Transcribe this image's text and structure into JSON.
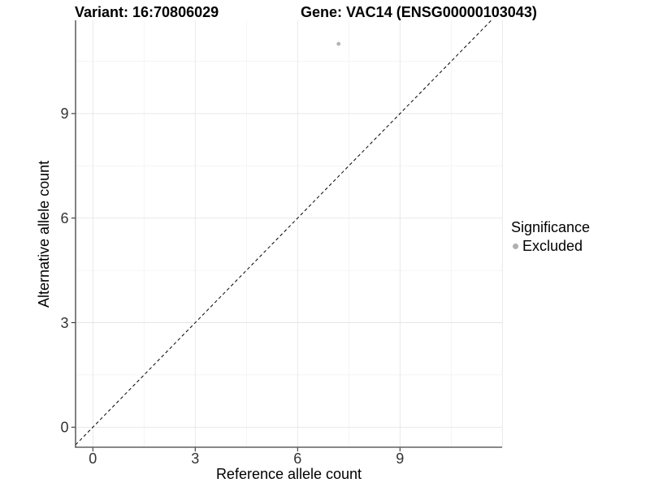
{
  "chart_data": {
    "type": "scatter",
    "title_left": "Variant: 16:70806029",
    "title_right": "Gene: VAC14 (ENSG00000103043)",
    "xlabel": "Reference allele count",
    "ylabel": "Alternative allele count",
    "x_ticks": [
      0,
      3,
      6,
      9
    ],
    "y_ticks": [
      0,
      3,
      6,
      9
    ],
    "x_grid_major": [
      0,
      3,
      6,
      9,
      12
    ],
    "x_grid_minor": [
      1.5,
      4.5,
      7.5,
      10.5
    ],
    "y_grid_major": [
      0,
      3,
      6,
      9
    ],
    "y_grid_minor": [
      1.5,
      4.5,
      7.5,
      10.5
    ],
    "xlim": [
      -0.51,
      12.0
    ],
    "ylim": [
      -0.58,
      11.68
    ],
    "grid": true,
    "reference_line": {
      "style": "dashed",
      "slope": 1,
      "intercept": 0,
      "color": "#000000"
    },
    "series": [
      {
        "name": "Excluded",
        "color": "#b4b4b4",
        "points": [
          {
            "x": 7.2,
            "y": 11
          }
        ]
      }
    ],
    "legend": {
      "position": "right",
      "title": "Significance",
      "items": [
        {
          "label": "Excluded",
          "color": "#b0b0b0"
        }
      ]
    },
    "style": {
      "background": "#ffffff",
      "axis_line": "#404040",
      "tick_mark": "#333333",
      "tick_text": "#333333",
      "grid_major": "#e6e6e6",
      "grid_minor": "#f2f2f2",
      "point_radius": 2.4,
      "tick_font_size": 18
    }
  }
}
